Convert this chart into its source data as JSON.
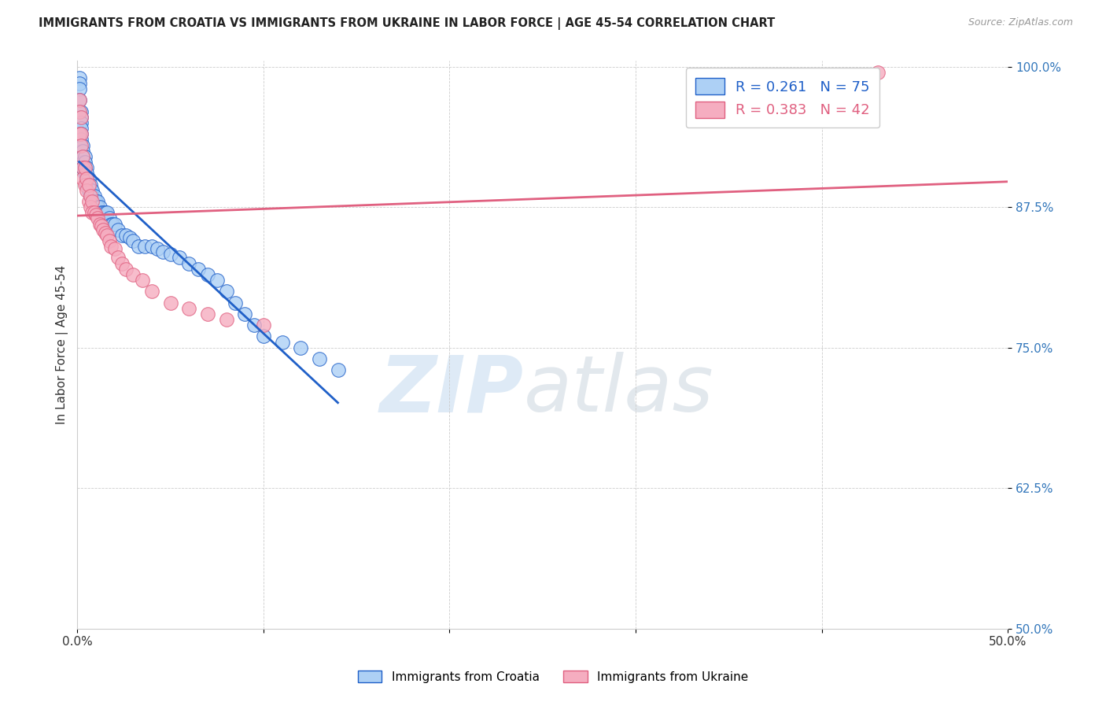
{
  "title": "IMMIGRANTS FROM CROATIA VS IMMIGRANTS FROM UKRAINE IN LABOR FORCE | AGE 45-54 CORRELATION CHART",
  "source": "Source: ZipAtlas.com",
  "ylabel": "In Labor Force | Age 45-54",
  "xlim": [
    0.0,
    0.5
  ],
  "ylim": [
    0.5,
    1.005
  ],
  "yticks": [
    0.5,
    0.625,
    0.75,
    0.875,
    1.0
  ],
  "yticklabels": [
    "50.0%",
    "62.5%",
    "75.0%",
    "87.5%",
    "100.0%"
  ],
  "xticks": [
    0.0,
    0.1,
    0.2,
    0.3,
    0.4,
    0.5
  ],
  "xticklabels": [
    "0.0%",
    "",
    "",
    "",
    "",
    "50.0%"
  ],
  "croatia_R": 0.261,
  "croatia_N": 75,
  "ukraine_R": 0.383,
  "ukraine_N": 42,
  "croatia_color": "#add0f5",
  "ukraine_color": "#f5adc0",
  "croatia_line_color": "#2060c8",
  "ukraine_line_color": "#e06080",
  "croatia_x": [
    0.001,
    0.001,
    0.001,
    0.001,
    0.001,
    0.001,
    0.001,
    0.001,
    0.002,
    0.002,
    0.002,
    0.002,
    0.002,
    0.002,
    0.003,
    0.003,
    0.003,
    0.003,
    0.003,
    0.004,
    0.004,
    0.004,
    0.004,
    0.005,
    0.005,
    0.005,
    0.005,
    0.006,
    0.006,
    0.006,
    0.007,
    0.007,
    0.007,
    0.008,
    0.008,
    0.009,
    0.009,
    0.01,
    0.01,
    0.011,
    0.011,
    0.012,
    0.013,
    0.014,
    0.015,
    0.016,
    0.017,
    0.018,
    0.019,
    0.02,
    0.022,
    0.024,
    0.026,
    0.028,
    0.03,
    0.033,
    0.036,
    0.04,
    0.043,
    0.046,
    0.05,
    0.055,
    0.06,
    0.065,
    0.07,
    0.075,
    0.08,
    0.085,
    0.09,
    0.095,
    0.1,
    0.11,
    0.12,
    0.13,
    0.14
  ],
  "croatia_y": [
    0.99,
    0.985,
    0.98,
    0.97,
    0.96,
    0.95,
    0.94,
    0.93,
    0.96,
    0.955,
    0.95,
    0.945,
    0.94,
    0.935,
    0.93,
    0.925,
    0.92,
    0.915,
    0.91,
    0.92,
    0.915,
    0.91,
    0.905,
    0.91,
    0.905,
    0.9,
    0.895,
    0.9,
    0.895,
    0.89,
    0.895,
    0.89,
    0.885,
    0.89,
    0.885,
    0.885,
    0.88,
    0.88,
    0.875,
    0.88,
    0.875,
    0.875,
    0.87,
    0.87,
    0.87,
    0.87,
    0.865,
    0.86,
    0.86,
    0.86,
    0.855,
    0.85,
    0.85,
    0.848,
    0.845,
    0.84,
    0.84,
    0.84,
    0.838,
    0.835,
    0.833,
    0.83,
    0.825,
    0.82,
    0.815,
    0.81,
    0.8,
    0.79,
    0.78,
    0.77,
    0.76,
    0.755,
    0.75,
    0.74,
    0.73
  ],
  "ukraine_x": [
    0.001,
    0.001,
    0.001,
    0.002,
    0.002,
    0.002,
    0.003,
    0.003,
    0.003,
    0.004,
    0.004,
    0.005,
    0.005,
    0.006,
    0.006,
    0.007,
    0.007,
    0.008,
    0.008,
    0.009,
    0.01,
    0.011,
    0.012,
    0.013,
    0.014,
    0.015,
    0.016,
    0.017,
    0.018,
    0.02,
    0.022,
    0.024,
    0.026,
    0.03,
    0.035,
    0.04,
    0.05,
    0.06,
    0.07,
    0.08,
    0.1,
    0.43
  ],
  "ukraine_y": [
    0.97,
    0.96,
    0.94,
    0.955,
    0.94,
    0.93,
    0.92,
    0.91,
    0.9,
    0.91,
    0.895,
    0.9,
    0.89,
    0.895,
    0.88,
    0.885,
    0.875,
    0.88,
    0.87,
    0.87,
    0.868,
    0.865,
    0.86,
    0.858,
    0.855,
    0.852,
    0.85,
    0.845,
    0.84,
    0.838,
    0.83,
    0.825,
    0.82,
    0.815,
    0.81,
    0.8,
    0.79,
    0.785,
    0.78,
    0.775,
    0.77,
    0.995
  ],
  "watermark_zip": "ZIP",
  "watermark_atlas": "atlas",
  "background_color": "#ffffff",
  "grid_color": "#cccccc"
}
